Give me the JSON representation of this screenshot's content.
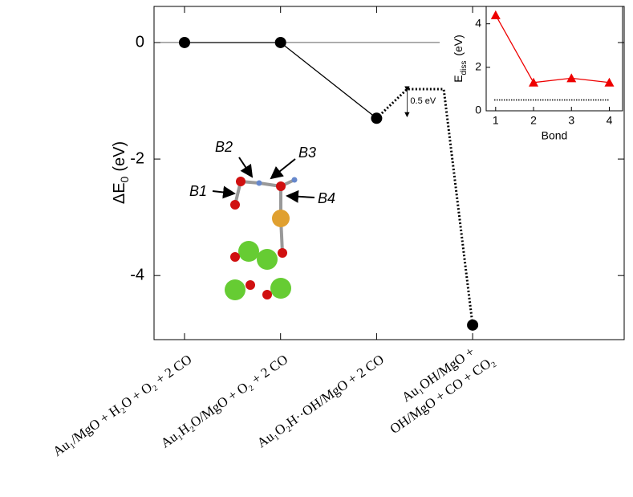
{
  "chart_data": [
    {
      "type": "line",
      "ylabel": [
        "ΔE",
        "0",
        "(eV)"
      ],
      "categories": [
        "Au₁/MgO + H₂O + O₂ + 2 CO",
        "Au₁H₂O/MgO + O₂ + 2 CO",
        "Au₁O₂H··OH/MgO + 2 CO",
        [
          "Au₁OH/MgO +",
          "OH/MgO + CO + CO₂"
        ]
      ],
      "values": [
        0,
        0,
        -1.3,
        -4.85
      ],
      "barrier": -0.8,
      "barrier_label": "0.5 eV",
      "annotations": [
        "B1",
        "B2",
        "B3",
        "B4"
      ],
      "color": "#000000",
      "ylim": [
        -5.1,
        0.62
      ],
      "yticks": [
        0,
        -2,
        -4
      ]
    },
    {
      "type": "line",
      "ylabel": [
        "E",
        "diss",
        "(eV)"
      ],
      "xlabel": "Bond",
      "x": [
        1,
        2,
        3,
        4
      ],
      "values": [
        4.4,
        1.3,
        1.5,
        1.3
      ],
      "reference_line": 0.5,
      "color": "#ee0000",
      "xlim": [
        0.75,
        4.35
      ],
      "xticks": [
        1,
        2,
        3,
        4
      ],
      "ylim": [
        0,
        4.8
      ],
      "yticks": [
        0,
        2,
        4
      ]
    }
  ]
}
